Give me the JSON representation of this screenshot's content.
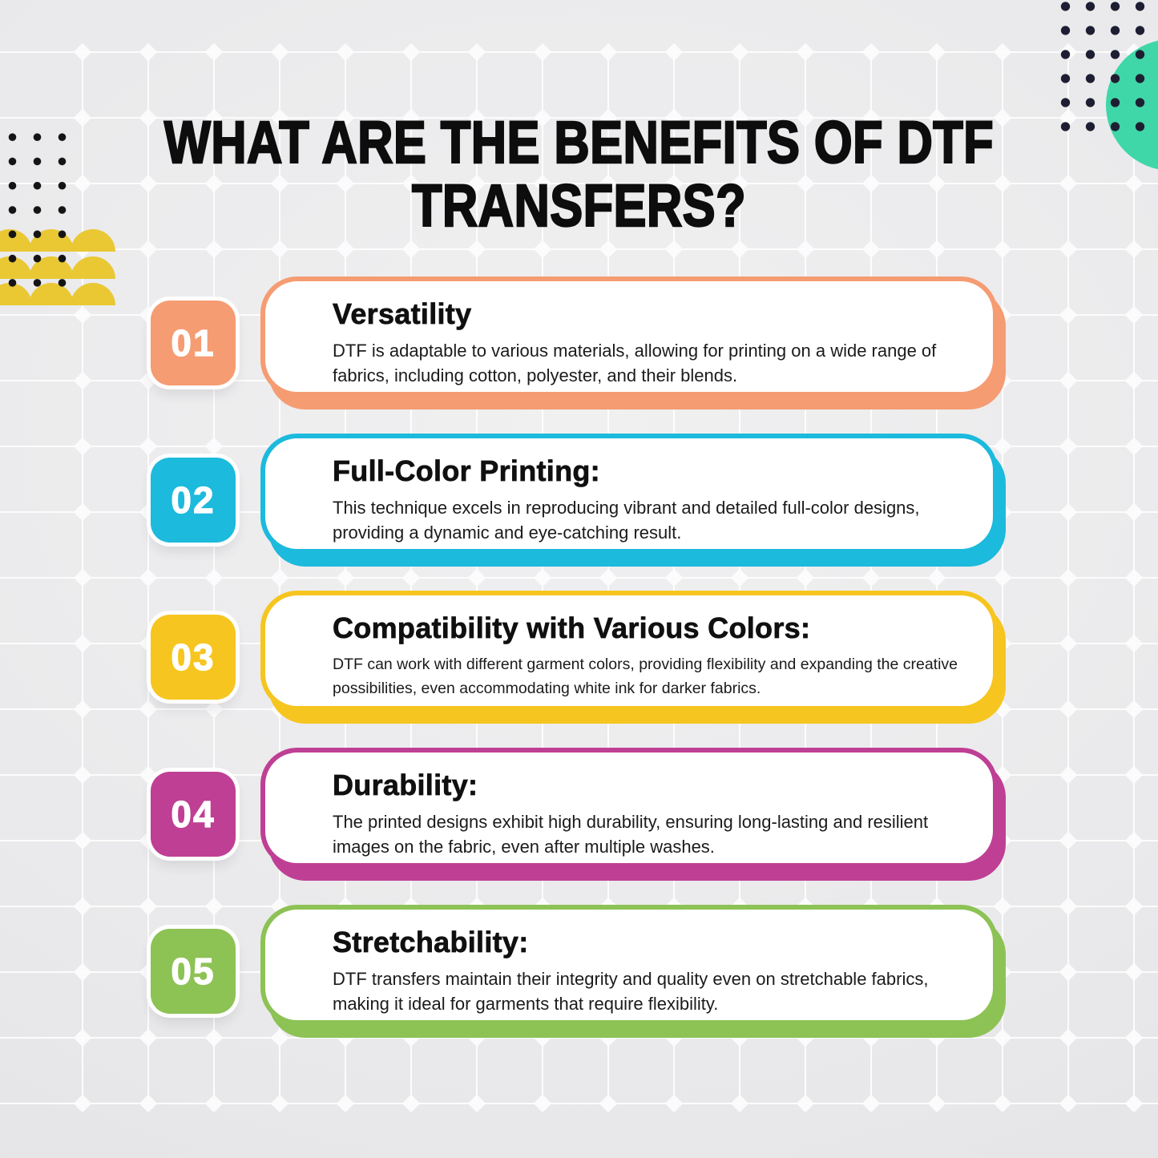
{
  "title": {
    "line1": "WHAT ARE THE BENEFITS OF DTF",
    "line2": "TRANSFERS?"
  },
  "cards": [
    {
      "number": "01",
      "heading": "Versatility",
      "body": "DTF is adaptable to various materials, allowing for printing on a wide range of fabrics, including cotton, polyester, and their blends.",
      "color": "#F59C72"
    },
    {
      "number": "02",
      "heading": "Full-Color Printing:",
      "body": "This technique excels in reproducing vibrant and detailed full-color designs, providing a dynamic and eye-catching result.",
      "color": "#1CBADC"
    },
    {
      "number": "03",
      "heading": "Compatibility with Various Colors:",
      "body": "DTF can work with different garment colors, providing flexibility and expanding the creative possibilities, even accommodating white ink for darker fabrics.",
      "color": "#F6C51F"
    },
    {
      "number": "04",
      "heading": "Durability:",
      "body": "The printed designs exhibit high durability, ensuring long-lasting and resilient images on the fabric, even after multiple washes.",
      "color": "#BF3F94"
    },
    {
      "number": "05",
      "heading": "Stretchability:",
      "body": "DTF transfers maintain their integrity and quality even on stretchable fabrics, making it ideal for garments that require flexibility.",
      "color": "#8DC255"
    }
  ],
  "decor": {
    "background_color": "#E9E9EB",
    "grid_line_color": "#FFFFFF",
    "circle_color": "#3FD7A8",
    "dots_top_right_color": "#1E1E32",
    "dots_left_color": "#141414",
    "scallops_color": "#E9C834",
    "title_color": "#0D0D0D",
    "body_text_color": "#1B1B1B"
  }
}
